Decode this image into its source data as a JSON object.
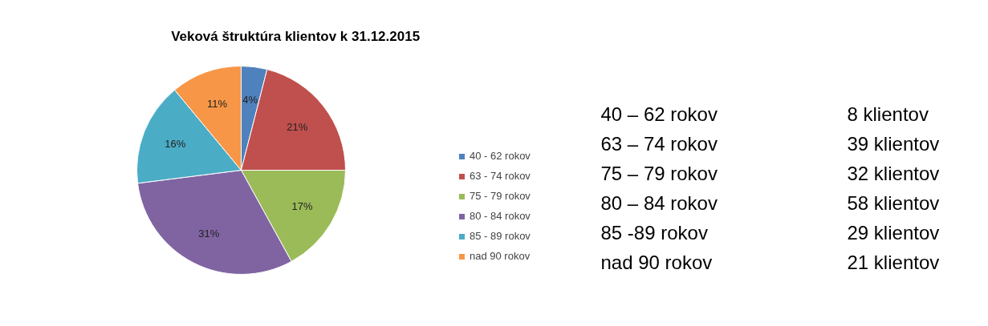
{
  "chart_data": {
    "type": "pie",
    "title": "Veková štruktúra  klientov k 31.12.2015",
    "categories": [
      "40 - 62 rokov",
      "63 - 74 rokov",
      "75 - 79 rokov",
      "80 - 84 rokov",
      "85 - 89 rokov",
      "nad 90 rokov"
    ],
    "values": [
      4,
      21,
      17,
      31,
      16,
      11
    ],
    "value_labels": [
      "4%",
      "21%",
      "17%",
      "31%",
      "16%",
      "11%"
    ],
    "colors": [
      "#4f81bd",
      "#c0504d",
      "#9bbb59",
      "#8064a2",
      "#4bacc6",
      "#f79646"
    ],
    "legend": "right",
    "annotations": [
      "40 – 62 rokov",
      "63 – 74 rokov",
      "75 – 79 rokov",
      "80 – 84 rokov",
      "85 -89 rokov",
      "nad 90 rokov",
      "8 klientov",
      "39 klientov",
      "32 klientov",
      "58 klientov",
      "29 klientov",
      "21 klientov"
    ]
  }
}
